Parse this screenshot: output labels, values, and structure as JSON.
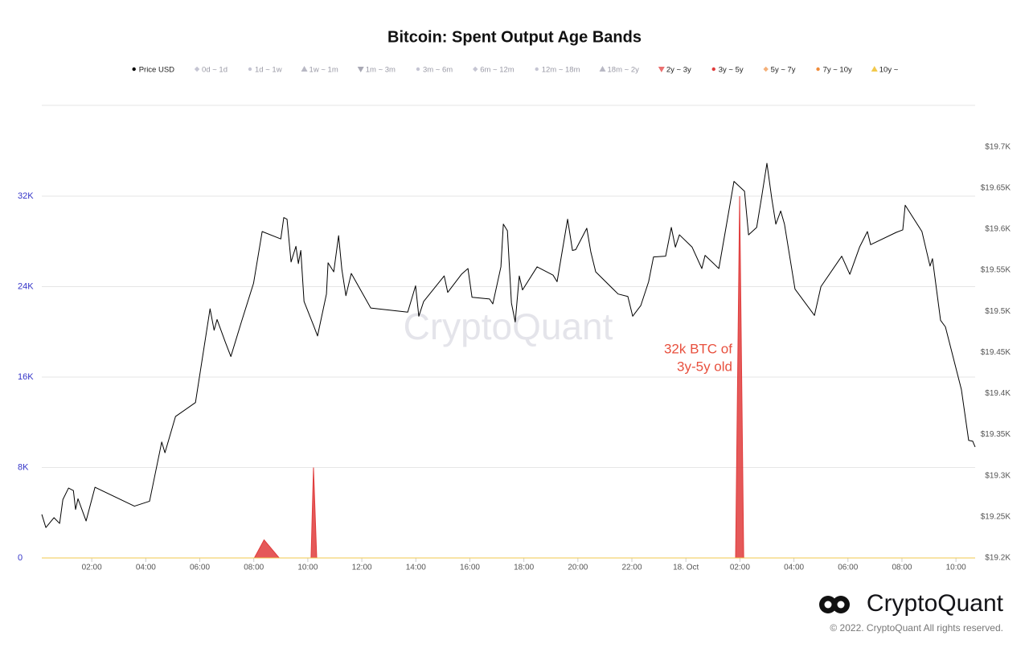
{
  "chart_data": {
    "type": "line",
    "title": "Bitcoin: Spent Output Age Bands",
    "xlim": [
      0.15,
      34.71
    ],
    "xticks": [
      {
        "value": 2,
        "label": "02:00"
      },
      {
        "value": 4,
        "label": "04:00"
      },
      {
        "value": 6,
        "label": "06:00"
      },
      {
        "value": 8,
        "label": "08:00"
      },
      {
        "value": 10,
        "label": "10:00"
      },
      {
        "value": 12,
        "label": "12:00"
      },
      {
        "value": 14,
        "label": "14:00"
      },
      {
        "value": 16,
        "label": "16:00"
      },
      {
        "value": 18,
        "label": "18:00"
      },
      {
        "value": 20,
        "label": "20:00"
      },
      {
        "value": 22,
        "label": "22:00"
      },
      {
        "value": 24,
        "label": "18. Oct"
      },
      {
        "value": 26,
        "label": "02:00"
      },
      {
        "value": 28,
        "label": "04:00"
      },
      {
        "value": 30,
        "label": "06:00"
      },
      {
        "value": 32,
        "label": "08:00"
      },
      {
        "value": 34,
        "label": "10:00"
      }
    ],
    "ylim": [
      0,
      40000
    ],
    "yticks": [
      0,
      {
        "value": 8000,
        "label": "8K"
      },
      {
        "value": 16000,
        "label": "16K"
      },
      {
        "value": 24000,
        "label": "24K"
      },
      {
        "value": 32000,
        "label": "32K"
      }
    ],
    "y2lim": [
      19200,
      19750
    ],
    "y2ticks": [
      {
        "value": 19200,
        "label": "$19.2K"
      },
      {
        "value": 19250,
        "label": "$19.25K"
      },
      {
        "value": 19300,
        "label": "$19.3K"
      },
      {
        "value": 19350,
        "label": "$19.35K"
      },
      {
        "value": 19400,
        "label": "$19.4K"
      },
      {
        "value": 19450,
        "label": "$19.45K"
      },
      {
        "value": 19500,
        "label": "$19.5K"
      },
      {
        "value": 19550,
        "label": "$19.55K"
      },
      {
        "value": 19600,
        "label": "$19.6K"
      },
      {
        "value": 19650,
        "label": "$19.65K"
      },
      {
        "value": 19700,
        "label": "$19.7K"
      }
    ],
    "grid": true,
    "legend": "top",
    "series": [
      {
        "name": "Price USD",
        "color": "#000000",
        "marker": "circle",
        "visible": true,
        "style": "line",
        "axis": "y2",
        "x": [
          0.15,
          0.3,
          0.6,
          0.81,
          0.93,
          1.14,
          1.32,
          1.4,
          1.49,
          1.79,
          2.12,
          3.58,
          4.14,
          4.59,
          4.71,
          5.1,
          5.84,
          6.38,
          6.53,
          6.64,
          6.94,
          7.15,
          7.54,
          7.99,
          8.31,
          9.0,
          9.11,
          9.23,
          9.38,
          9.56,
          9.65,
          9.74,
          9.86,
          10.21,
          10.36,
          10.69,
          10.75,
          10.96,
          11.14,
          11.26,
          11.41,
          11.61,
          12.33,
          13.7,
          13.99,
          14.11,
          14.29,
          15.05,
          15.18,
          15.69,
          15.93,
          16.08,
          16.73,
          16.85,
          17.15,
          17.24,
          17.39,
          17.54,
          17.68,
          17.83,
          17.95,
          18.49,
          19.08,
          19.23,
          19.62,
          19.8,
          19.92,
          20.33,
          20.48,
          20.66,
          21.49,
          21.85,
          22.03,
          22.33,
          22.62,
          22.8,
          23.25,
          23.46,
          23.61,
          23.76,
          24.23,
          24.59,
          24.71,
          25.22,
          25.48,
          25.78,
          26.17,
          26.32,
          26.62,
          26.8,
          27.0,
          27.18,
          27.33,
          27.51,
          27.65,
          28.04,
          28.76,
          29.0,
          29.77,
          30.07,
          30.43,
          30.72,
          30.84,
          31.79,
          32.03,
          32.12,
          32.74,
          33.04,
          33.13,
          33.43,
          33.61,
          34.2,
          34.47,
          34.62,
          34.71
        ],
        "values": [
          19253,
          19237,
          19249,
          19242,
          19271,
          19285,
          19282,
          19259,
          19272,
          19245,
          19286,
          19263,
          19269,
          19341,
          19328,
          19372,
          19389,
          19503,
          19477,
          19490,
          19463,
          19445,
          19487,
          19534,
          19597,
          19588,
          19614,
          19612,
          19560,
          19579,
          19558,
          19574,
          19512,
          19483,
          19470,
          19521,
          19559,
          19548,
          19592,
          19551,
          19519,
          19546,
          19504,
          19499,
          19531,
          19494,
          19512,
          19543,
          19523,
          19545,
          19552,
          19517,
          19515,
          19509,
          19554,
          19606,
          19598,
          19510,
          19487,
          19543,
          19526,
          19554,
          19544,
          19536,
          19612,
          19574,
          19575,
          19601,
          19572,
          19548,
          19521,
          19518,
          19494,
          19507,
          19536,
          19566,
          19567,
          19602,
          19578,
          19593,
          19578,
          19552,
          19568,
          19552,
          19601,
          19658,
          19646,
          19593,
          19602,
          19638,
          19680,
          19637,
          19606,
          19622,
          19606,
          19527,
          19495,
          19530,
          19567,
          19545,
          19578,
          19597,
          19581,
          19596,
          19599,
          19629,
          19597,
          19555,
          19564,
          19489,
          19481,
          19405,
          19343,
          19342,
          19335
        ]
      },
      {
        "name": "0d ~ 1d",
        "color": "#c5c5d3",
        "marker": "diamond",
        "visible": false
      },
      {
        "name": "1d ~ 1w",
        "color": "#c5c5d3",
        "marker": "circle",
        "visible": false
      },
      {
        "name": "1w ~ 1m",
        "color": "#b8b8c4",
        "marker": "triangle",
        "visible": false
      },
      {
        "name": "1m ~ 3m",
        "color": "#a8a8b4",
        "marker": "triangle-down",
        "visible": false
      },
      {
        "name": "3m ~ 6m",
        "color": "#c5c5d3",
        "marker": "circle",
        "visible": false
      },
      {
        "name": "6m ~ 12m",
        "color": "#c5c5d3",
        "marker": "diamond",
        "visible": false
      },
      {
        "name": "12m ~ 18m",
        "color": "#c5c5d3",
        "marker": "circle",
        "visible": false
      },
      {
        "name": "18m ~ 2y",
        "color": "#b8b8c4",
        "marker": "triangle",
        "visible": false
      },
      {
        "name": "2y ~ 3y",
        "color": "#ea6f6f",
        "marker": "triangle-down",
        "visible": true,
        "style": "area",
        "axis": "y",
        "x": [
          0.15,
          34.71
        ],
        "values": [
          0,
          0
        ]
      },
      {
        "name": "3y ~ 5y",
        "color": "#e03c3c",
        "marker": "circle",
        "visible": true,
        "style": "area",
        "axis": "y",
        "x": [
          0.15,
          8.02,
          8.38,
          8.94,
          10.12,
          10.21,
          10.33,
          25.84,
          25.99,
          26.14,
          34.71
        ],
        "values": [
          0,
          0,
          1600,
          0,
          0,
          8000,
          0,
          0,
          32000,
          0,
          0
        ]
      },
      {
        "name": "5y ~ 7y",
        "color": "#f4b07a",
        "marker": "diamond",
        "visible": true,
        "style": "area",
        "axis": "y",
        "x": [
          0.15,
          34.71
        ],
        "values": [
          0,
          0
        ]
      },
      {
        "name": "7y ~ 10y",
        "color": "#f08c3a",
        "marker": "circle",
        "visible": true,
        "style": "area",
        "axis": "y",
        "x": [
          0.15,
          34.71
        ],
        "values": [
          0,
          0
        ]
      },
      {
        "name": "10y ~",
        "color": "#f2c94c",
        "marker": "triangle",
        "visible": true,
        "style": "area",
        "axis": "y",
        "x": [
          0.15,
          34.71
        ],
        "values": [
          0,
          0
        ]
      }
    ],
    "annotation": [
      "32k BTC of",
      "3y-5y old"
    ],
    "watermark": "CryptoQuant",
    "brand": "CryptoQuant",
    "copyright": "© 2022. CryptoQuant All rights reserved."
  }
}
